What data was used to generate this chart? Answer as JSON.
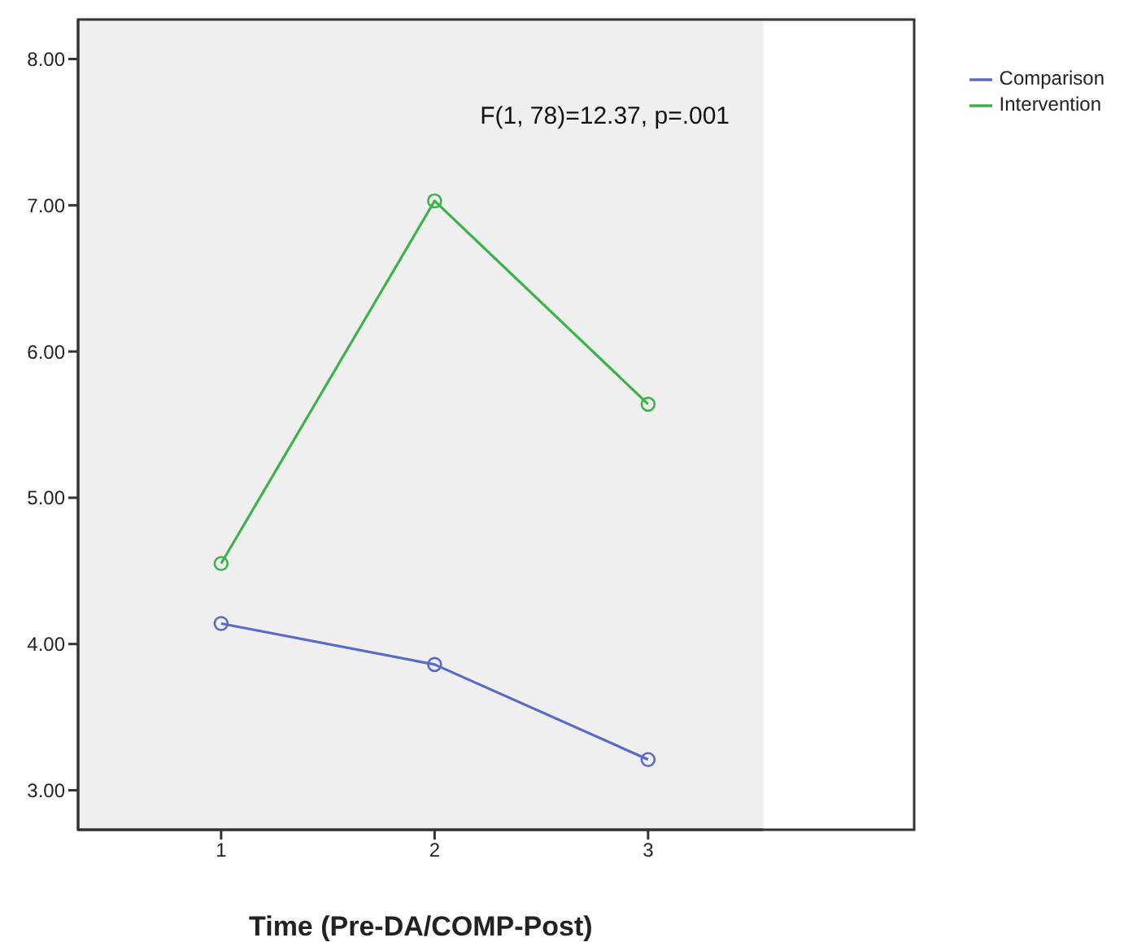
{
  "chart_data": {
    "type": "line",
    "xlabel": "Time (Pre-DA/COMP-Post)",
    "x": [
      1,
      2,
      3
    ],
    "series": [
      {
        "name": "Comparison",
        "color": "#5a6bc6",
        "values": [
          4.14,
          3.86,
          3.21
        ]
      },
      {
        "name": "Intervention",
        "color": "#3cb34a",
        "values": [
          4.55,
          7.03,
          5.64
        ]
      }
    ],
    "xlim": [
      0.33,
      3.54
    ],
    "xticks": [
      1,
      2,
      3
    ],
    "ylim": [
      2.73,
      8.27
    ],
    "yticks": [
      {
        "value": 3,
        "label": "3.00"
      },
      {
        "value": 4,
        "label": "4.00"
      },
      {
        "value": 5,
        "label": "5.00"
      },
      {
        "value": 6,
        "label": "6.00"
      },
      {
        "value": 7,
        "label": "7.00"
      },
      {
        "value": 8,
        "label": "8.00"
      }
    ],
    "annotations": [
      "F(1, 78)=12.37, p=.001"
    ],
    "marker": "circle",
    "line_style": "solid",
    "legend": "top right",
    "grid": false
  }
}
